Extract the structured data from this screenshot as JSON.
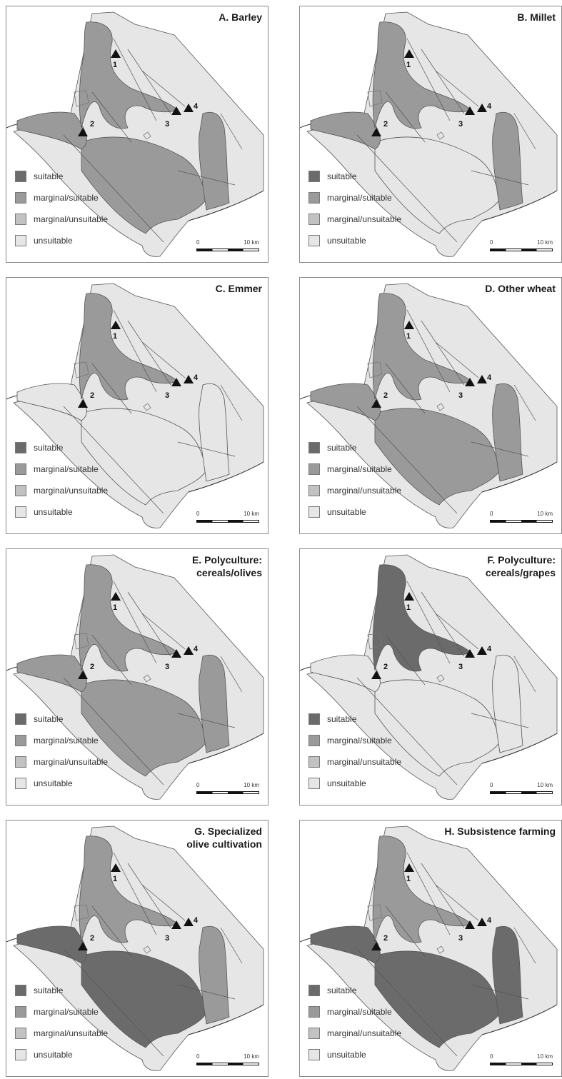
{
  "legend": {
    "categories": [
      {
        "key": "suitable",
        "label": "suitable",
        "color": "#6b6b6b"
      },
      {
        "key": "marginal_suitable",
        "label": "marginal/suitable",
        "color": "#9a9a9a"
      },
      {
        "key": "marginal_unsuitable",
        "label": "marginal/unsuitable",
        "color": "#c2c2c2"
      },
      {
        "key": "unsuitable",
        "label": "unsuitable",
        "color": "#e6e6e6"
      }
    ]
  },
  "scale": {
    "zero": "0",
    "max": "10 km"
  },
  "sites": [
    "1",
    "2",
    "3",
    "4"
  ],
  "panels": [
    {
      "id": "A",
      "title": "A. Barley",
      "fills": {
        "north": "marginal_suitable",
        "coast": "marginal_suitable",
        "plain": "marginal_suitable",
        "east": "marginal_suitable",
        "upland": "unsuitable"
      }
    },
    {
      "id": "B",
      "title": "B. Millet",
      "fills": {
        "north": "marginal_suitable",
        "coast": "marginal_suitable",
        "plain": "unsuitable",
        "east": "marginal_suitable",
        "upland": "unsuitable"
      }
    },
    {
      "id": "C",
      "title": "C. Emmer",
      "fills": {
        "north": "marginal_suitable",
        "coast": "unsuitable",
        "plain": "unsuitable",
        "east": "unsuitable",
        "upland": "unsuitable"
      }
    },
    {
      "id": "D",
      "title": "D. Other wheat",
      "fills": {
        "north": "marginal_suitable",
        "coast": "marginal_suitable",
        "plain": "marginal_suitable",
        "east": "marginal_suitable",
        "upland": "unsuitable"
      }
    },
    {
      "id": "E",
      "title": "E. Polyculture:\ncereals/olives",
      "fills": {
        "north": "marginal_suitable",
        "coast": "marginal_suitable",
        "plain": "marginal_suitable",
        "east": "marginal_suitable",
        "upland": "unsuitable"
      }
    },
    {
      "id": "F",
      "title": "F. Polyculture:\ncereals/grapes",
      "fills": {
        "north": "suitable",
        "coast": "unsuitable",
        "plain": "unsuitable",
        "east": "unsuitable",
        "upland": "unsuitable"
      }
    },
    {
      "id": "G",
      "title": "G. Specialized\nolive cultivation",
      "fills": {
        "north": "marginal_suitable",
        "coast": "suitable",
        "plain": "suitable",
        "east": "marginal_suitable",
        "upland": "unsuitable"
      }
    },
    {
      "id": "H",
      "title": "H. Subsistence farming",
      "fills": {
        "north": "marginal_suitable",
        "coast": "suitable",
        "plain": "suitable",
        "east": "suitable",
        "upland": "unsuitable"
      }
    }
  ]
}
